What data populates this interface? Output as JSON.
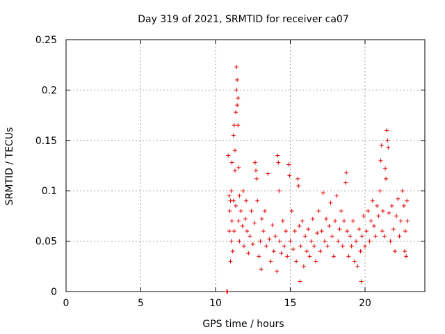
{
  "chart_data": {
    "type": "scatter",
    "title": "Day 319 of 2021, SRMTID for receiver ca07",
    "xlabel": "GPS time / hours",
    "ylabel": "SRMTID / TECUs",
    "xlim": [
      0,
      24
    ],
    "ylim": [
      0,
      0.25
    ],
    "xticks": [
      0,
      5,
      10,
      15,
      20
    ],
    "xtick_labels": [
      "0",
      "5",
      "10",
      "15",
      "20"
    ],
    "yticks": [
      0,
      0.05,
      0.1,
      0.15,
      0.2,
      0.25
    ],
    "ytick_labels": [
      "0",
      "0.05",
      "0.1",
      "0.15",
      "0.2",
      "0.25"
    ],
    "grid": true,
    "marker": "plus",
    "color": "#e00000",
    "series": [
      {
        "name": "SRMTID",
        "points": [
          [
            10.75,
            0.0
          ],
          [
            10.8,
            0.0
          ],
          [
            10.85,
            0.135
          ],
          [
            10.9,
            0.095
          ],
          [
            10.92,
            0.06
          ],
          [
            10.95,
            0.08
          ],
          [
            11.0,
            0.03
          ],
          [
            11.0,
            0.09
          ],
          [
            11.05,
            0.05
          ],
          [
            11.05,
            0.1
          ],
          [
            11.1,
            0.128
          ],
          [
            11.1,
            0.07
          ],
          [
            11.15,
            0.04
          ],
          [
            11.2,
            0.09
          ],
          [
            11.2,
            0.155
          ],
          [
            11.25,
            0.165
          ],
          [
            11.25,
            0.06
          ],
          [
            11.3,
            0.14
          ],
          [
            11.3,
            0.12
          ],
          [
            11.35,
            0.178
          ],
          [
            11.35,
            0.085
          ],
          [
            11.4,
            0.2
          ],
          [
            11.4,
            0.223
          ],
          [
            11.45,
            0.185
          ],
          [
            11.45,
            0.21
          ],
          [
            11.5,
            0.192
          ],
          [
            11.5,
            0.165
          ],
          [
            11.55,
            0.123
          ],
          [
            11.55,
            0.07
          ],
          [
            11.6,
            0.095
          ],
          [
            11.6,
            0.05
          ],
          [
            11.7,
            0.08
          ],
          [
            11.8,
            0.065
          ],
          [
            11.85,
            0.1
          ],
          [
            11.9,
            0.045
          ],
          [
            12.0,
            0.072
          ],
          [
            12.05,
            0.09
          ],
          [
            12.1,
            0.06
          ],
          [
            12.2,
            0.038
          ],
          [
            12.3,
            0.055
          ],
          [
            12.4,
            0.08
          ],
          [
            12.5,
            0.047
          ],
          [
            12.6,
            0.068
          ],
          [
            12.65,
            0.128
          ],
          [
            12.7,
            0.12
          ],
          [
            12.75,
            0.112
          ],
          [
            12.8,
            0.09
          ],
          [
            12.9,
            0.035
          ],
          [
            13.0,
            0.05
          ],
          [
            13.05,
            0.022
          ],
          [
            13.1,
            0.072
          ],
          [
            13.2,
            0.06
          ],
          [
            13.3,
            0.08
          ],
          [
            13.4,
            0.045
          ],
          [
            13.5,
            0.117
          ],
          [
            13.6,
            0.052
          ],
          [
            13.7,
            0.03
          ],
          [
            13.8,
            0.066
          ],
          [
            13.9,
            0.04
          ],
          [
            14.0,
            0.055
          ],
          [
            14.1,
            0.02
          ],
          [
            14.15,
            0.135
          ],
          [
            14.2,
            0.128
          ],
          [
            14.25,
            0.1
          ],
          [
            14.3,
            0.05
          ],
          [
            14.4,
            0.038
          ],
          [
            14.5,
            0.07
          ],
          [
            14.6,
            0.045
          ],
          [
            14.7,
            0.06
          ],
          [
            14.8,
            0.035
          ],
          [
            14.9,
            0.126
          ],
          [
            14.95,
            0.115
          ],
          [
            15.0,
            0.05
          ],
          [
            15.1,
            0.08
          ],
          [
            15.2,
            0.042
          ],
          [
            15.3,
            0.06
          ],
          [
            15.4,
            0.03
          ],
          [
            15.5,
            0.112
          ],
          [
            15.55,
            0.105
          ],
          [
            15.6,
            0.065
          ],
          [
            15.65,
            0.01
          ],
          [
            15.7,
            0.045
          ],
          [
            15.8,
            0.07
          ],
          [
            15.9,
            0.025
          ],
          [
            16.0,
            0.055
          ],
          [
            16.1,
            0.04
          ],
          [
            16.2,
            0.062
          ],
          [
            16.3,
            0.035
          ],
          [
            16.4,
            0.05
          ],
          [
            16.5,
            0.072
          ],
          [
            16.6,
            0.045
          ],
          [
            16.7,
            0.03
          ],
          [
            16.8,
            0.058
          ],
          [
            16.9,
            0.08
          ],
          [
            17.0,
            0.04
          ],
          [
            17.1,
            0.06
          ],
          [
            17.2,
            0.098
          ],
          [
            17.3,
            0.05
          ],
          [
            17.4,
            0.072
          ],
          [
            17.5,
            0.045
          ],
          [
            17.6,
            0.065
          ],
          [
            17.7,
            0.088
          ],
          [
            17.8,
            0.055
          ],
          [
            17.9,
            0.035
          ],
          [
            18.0,
            0.07
          ],
          [
            18.1,
            0.095
          ],
          [
            18.2,
            0.05
          ],
          [
            18.3,
            0.062
          ],
          [
            18.4,
            0.08
          ],
          [
            18.5,
            0.045
          ],
          [
            18.6,
            0.07
          ],
          [
            18.7,
            0.108
          ],
          [
            18.75,
            0.118
          ],
          [
            18.8,
            0.06
          ],
          [
            18.9,
            0.035
          ],
          [
            19.0,
            0.055
          ],
          [
            19.1,
            0.045
          ],
          [
            19.2,
            0.07
          ],
          [
            19.3,
            0.03
          ],
          [
            19.4,
            0.05
          ],
          [
            19.5,
            0.025
          ],
          [
            19.6,
            0.062
          ],
          [
            19.7,
            0.04
          ],
          [
            19.75,
            0.01
          ],
          [
            19.8,
            0.055
          ],
          [
            19.9,
            0.075
          ],
          [
            20.0,
            0.045
          ],
          [
            20.1,
            0.06
          ],
          [
            20.2,
            0.08
          ],
          [
            20.3,
            0.05
          ],
          [
            20.4,
            0.07
          ],
          [
            20.5,
            0.09
          ],
          [
            20.6,
            0.065
          ],
          [
            20.7,
            0.055
          ],
          [
            20.8,
            0.085
          ],
          [
            20.9,
            0.075
          ],
          [
            21.0,
            0.1
          ],
          [
            21.05,
            0.13
          ],
          [
            21.1,
            0.145
          ],
          [
            21.15,
            0.06
          ],
          [
            21.2,
            0.08
          ],
          [
            21.3,
            0.055
          ],
          [
            21.35,
            0.122
          ],
          [
            21.4,
            0.112
          ],
          [
            21.45,
            0.16
          ],
          [
            21.5,
            0.15
          ],
          [
            21.55,
            0.143
          ],
          [
            21.6,
            0.078
          ],
          [
            21.7,
            0.05
          ],
          [
            21.8,
            0.085
          ],
          [
            21.9,
            0.062
          ],
          [
            22.0,
            0.04
          ],
          [
            22.1,
            0.075
          ],
          [
            22.2,
            0.092
          ],
          [
            22.3,
            0.055
          ],
          [
            22.4,
            0.07
          ],
          [
            22.5,
            0.1
          ],
          [
            22.6,
            0.085
          ],
          [
            22.65,
            0.04
          ],
          [
            22.7,
            0.06
          ],
          [
            22.75,
            0.035
          ],
          [
            22.8,
            0.09
          ],
          [
            22.85,
            0.07
          ]
        ]
      }
    ]
  }
}
